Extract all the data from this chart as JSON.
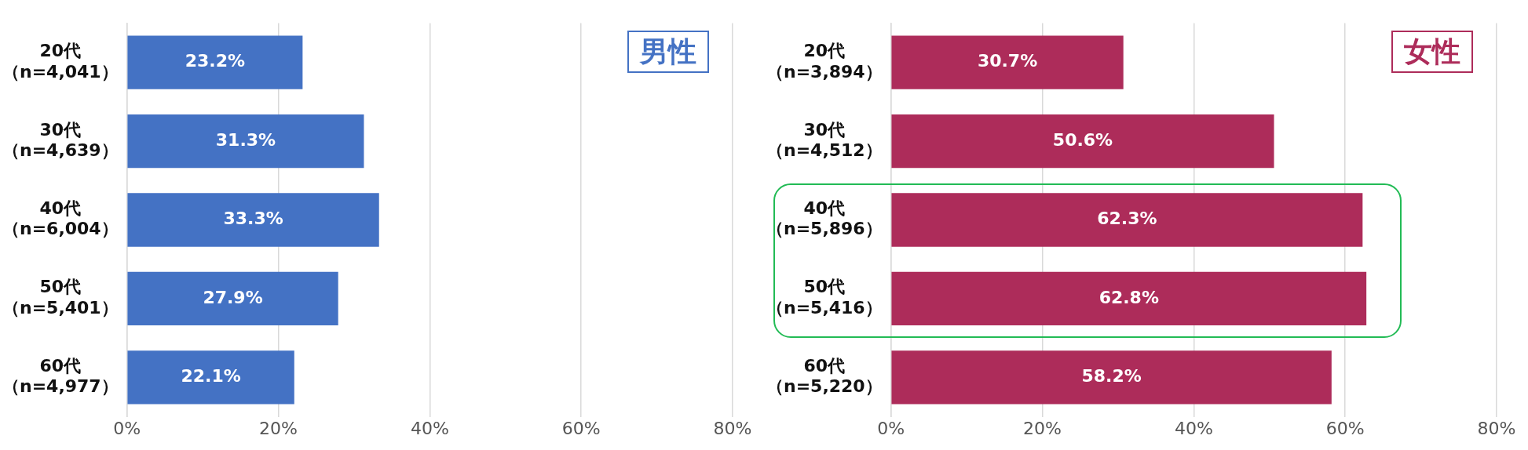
{
  "chart_data": [
    {
      "type": "bar",
      "orientation": "horizontal",
      "title": "男性",
      "categories": [
        "20代（n=4,041）",
        "30代（n=4,639）",
        "40代（n=6,004）",
        "50代（n=5,401）",
        "60代（n=4,977）"
      ],
      "values": [
        23.2,
        31.3,
        33.3,
        27.9,
        22.1
      ],
      "color": "#4472c4",
      "value_labels": [
        "23.2%",
        "31.3%",
        "33.3%",
        "27.9%",
        "22.1%"
      ],
      "xlim": [
        0,
        80
      ],
      "xticks": [
        {
          "value": 0,
          "label": "0%"
        },
        {
          "value": 20,
          "label": "20%"
        },
        {
          "value": 40,
          "label": "40%"
        },
        {
          "value": 60,
          "label": "60%"
        },
        {
          "value": 80,
          "label": "80%"
        }
      ],
      "grid": "x",
      "legend": false
    },
    {
      "type": "bar",
      "orientation": "horizontal",
      "title": "女性",
      "categories": [
        "20代（n=3,894）",
        "30代（n=4,512）",
        "40代（n=5,896）",
        "50代（n=5,416）",
        "60代（n=5,220）"
      ],
      "values": [
        30.7,
        50.6,
        62.3,
        62.8,
        58.2
      ],
      "color": "#ad2c5a",
      "value_labels": [
        "30.7%",
        "50.6%",
        "62.3%",
        "62.8%",
        "58.2%"
      ],
      "xlim": [
        0,
        80
      ],
      "xticks": [
        {
          "value": 0,
          "label": "0%"
        },
        {
          "value": 20,
          "label": "20%"
        },
        {
          "value": 40,
          "label": "40%"
        },
        {
          "value": 60,
          "label": "60%"
        },
        {
          "value": 80,
          "label": "80%"
        }
      ],
      "grid": "x",
      "legend": false
    }
  ]
}
